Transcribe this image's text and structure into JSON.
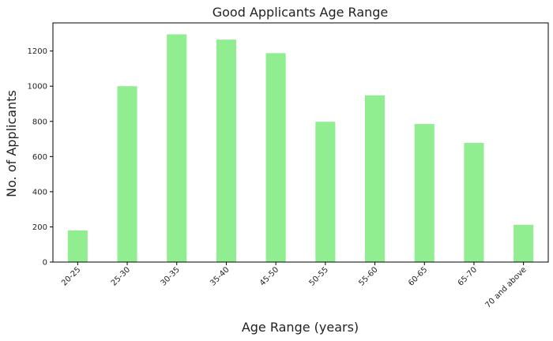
{
  "chart_data": {
    "type": "bar",
    "title": "Good Applicants Age Range",
    "xlabel": "Age Range (years)",
    "ylabel": "No. of Applicants",
    "categories": [
      "20-25",
      "25-30",
      "30-35",
      "35-40",
      "45-50",
      "50-55",
      "55-60",
      "60-65",
      "65-70",
      "70 and above"
    ],
    "values": [
      180,
      1000,
      1295,
      1265,
      1188,
      798,
      948,
      785,
      678,
      212
    ],
    "ylim": [
      0,
      1360
    ],
    "yticks": [
      0,
      200,
      400,
      600,
      800,
      1000,
      1200
    ],
    "bar_color": "#90ee90",
    "grid": false,
    "legend": false
  }
}
